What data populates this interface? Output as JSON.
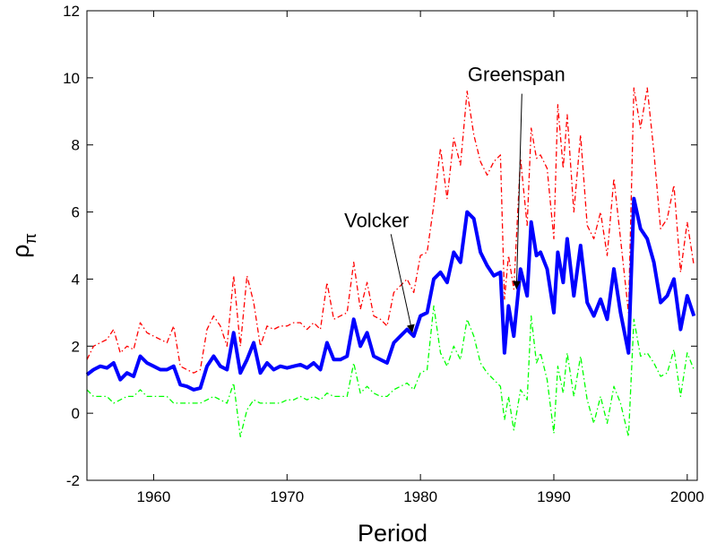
{
  "chart_data": {
    "type": "line",
    "xlabel": "Period",
    "ylabel": "ρ",
    "ylabel_subscript": "π",
    "x": [
      1955,
      1955.5,
      1956,
      1956.5,
      1957,
      1957.5,
      1958,
      1958.5,
      1959,
      1959.5,
      1960,
      1960.5,
      1961,
      1961.5,
      1962,
      1962.5,
      1963,
      1963.5,
      1964,
      1964.5,
      1965,
      1965.5,
      1966,
      1966.5,
      1967,
      1967.5,
      1968,
      1968.5,
      1969,
      1969.5,
      1970,
      1970.5,
      1971,
      1971.5,
      1972,
      1972.5,
      1973,
      1973.5,
      1974,
      1974.5,
      1975,
      1975.5,
      1976,
      1976.5,
      1977,
      1977.5,
      1978,
      1978.5,
      1979,
      1979.5,
      1980,
      1980.5,
      1981,
      1981.5,
      1982,
      1982.5,
      1983,
      1983.5,
      1984,
      1984.5,
      1985,
      1985.5,
      1986,
      1986.3,
      1986.6,
      1987,
      1987.5,
      1988,
      1988.3,
      1988.7,
      1989,
      1989.5,
      1990,
      1990.3,
      1990.7,
      1991,
      1991.5,
      1992,
      1992.5,
      1993,
      1993.5,
      1994,
      1994.5,
      1995,
      1995.6,
      1996,
      1996.5,
      1997,
      1997.5,
      1998,
      1998.5,
      1999,
      1999.5,
      2000,
      2000.5
    ],
    "series": [
      {
        "color": "#ff0000",
        "style": "dashdot",
        "width": 1.3,
        "values": [
          1.6,
          2.0,
          2.1,
          2.2,
          2.5,
          1.8,
          2.0,
          1.9,
          2.7,
          2.4,
          2.3,
          2.2,
          2.1,
          2.6,
          1.4,
          1.3,
          1.2,
          1.3,
          2.5,
          2.9,
          2.6,
          2.0,
          4.1,
          2.0,
          4.1,
          3.3,
          2.0,
          2.6,
          2.5,
          2.6,
          2.6,
          2.7,
          2.7,
          2.5,
          2.7,
          2.5,
          3.9,
          2.8,
          2.9,
          3.0,
          4.5,
          3.1,
          3.9,
          2.9,
          2.8,
          2.6,
          3.6,
          3.8,
          4.0,
          3.6,
          4.7,
          4.8,
          6.2,
          7.9,
          6.4,
          8.2,
          7.4,
          9.6,
          8.3,
          7.5,
          7.1,
          7.5,
          7.7,
          3.4,
          4.7,
          3.7,
          7.6,
          5.6,
          8.5,
          7.6,
          7.7,
          7.3,
          5.2,
          9.2,
          7.3,
          8.9,
          6.0,
          8.3,
          5.6,
          5.2,
          6.0,
          4.7,
          7.0,
          5.2,
          3.0,
          9.7,
          8.5,
          9.7,
          7.8,
          5.5,
          5.8,
          6.8,
          4.2,
          5.7,
          4.4
        ]
      },
      {
        "color": "#0000ff",
        "style": "solid",
        "width": 4,
        "values": [
          1.15,
          1.3,
          1.4,
          1.35,
          1.5,
          1.0,
          1.2,
          1.1,
          1.7,
          1.5,
          1.4,
          1.3,
          1.3,
          1.4,
          0.85,
          0.8,
          0.7,
          0.75,
          1.4,
          1.7,
          1.4,
          1.3,
          2.4,
          1.2,
          1.6,
          2.1,
          1.2,
          1.5,
          1.3,
          1.4,
          1.35,
          1.4,
          1.45,
          1.35,
          1.5,
          1.3,
          2.1,
          1.6,
          1.6,
          1.7,
          2.8,
          2.0,
          2.4,
          1.7,
          1.6,
          1.5,
          2.1,
          2.3,
          2.5,
          2.3,
          2.9,
          3.0,
          4.0,
          4.2,
          3.9,
          4.8,
          4.5,
          6.0,
          5.8,
          4.8,
          4.4,
          4.1,
          4.2,
          1.8,
          3.2,
          2.3,
          4.3,
          3.5,
          5.7,
          4.7,
          4.8,
          4.3,
          3.0,
          4.8,
          3.9,
          5.2,
          3.5,
          5.0,
          3.3,
          2.9,
          3.4,
          2.8,
          4.3,
          3.0,
          1.8,
          6.4,
          5.5,
          5.2,
          4.5,
          3.3,
          3.5,
          4.0,
          2.5,
          3.5,
          2.9
        ]
      },
      {
        "color": "#00ff00",
        "style": "dashdot",
        "width": 1.3,
        "values": [
          0.7,
          0.5,
          0.5,
          0.5,
          0.3,
          0.4,
          0.5,
          0.5,
          0.7,
          0.5,
          0.5,
          0.5,
          0.5,
          0.3,
          0.3,
          0.3,
          0.3,
          0.3,
          0.4,
          0.5,
          0.4,
          0.3,
          0.9,
          -0.7,
          0.1,
          0.4,
          0.3,
          0.3,
          0.3,
          0.3,
          0.4,
          0.4,
          0.5,
          0.4,
          0.5,
          0.4,
          0.6,
          0.5,
          0.5,
          0.5,
          1.5,
          0.6,
          0.8,
          0.6,
          0.5,
          0.5,
          0.7,
          0.8,
          0.9,
          0.7,
          1.2,
          1.3,
          3.2,
          1.8,
          1.4,
          2.0,
          1.6,
          2.8,
          2.3,
          1.5,
          1.2,
          1.0,
          0.8,
          -0.2,
          0.5,
          -0.5,
          0.7,
          0.4,
          2.9,
          1.5,
          1.8,
          1.0,
          -0.6,
          1.4,
          0.6,
          1.8,
          0.5,
          1.7,
          0.4,
          -0.3,
          0.5,
          -0.3,
          0.8,
          0.3,
          -0.7,
          2.8,
          1.7,
          1.8,
          1.5,
          1.1,
          1.2,
          1.9,
          0.5,
          1.8,
          1.3
        ]
      }
    ],
    "annotations": [
      {
        "text": "Volcker",
        "x": 1979.4,
        "y": 2.4
      },
      {
        "text": "Greenspan",
        "x": 1987.2,
        "y": 3.7
      }
    ],
    "xlim": [
      1955,
      2000.75
    ],
    "ylim": [
      -2,
      12
    ],
    "xticks": [
      1960,
      1970,
      1980,
      1990,
      2000
    ],
    "yticks": [
      -2,
      0,
      2,
      4,
      6,
      8,
      10,
      12
    ]
  }
}
